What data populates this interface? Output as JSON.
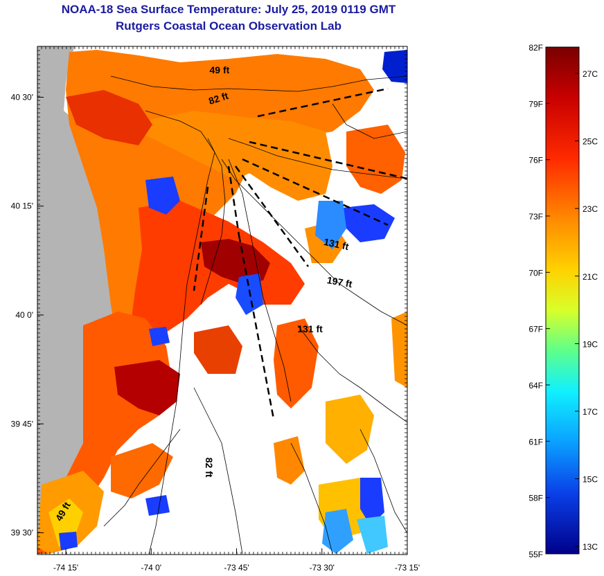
{
  "title": "NOAA-18 Sea Surface Temperature:  July 25, 2019 0119 GMT",
  "subtitle": "Rutgers Coastal Ocean Observation Lab",
  "map": {
    "lon_range": [
      -74.3333,
      -73.25
    ],
    "lat_range": [
      39.45,
      40.6167
    ],
    "x_ticks": [
      {
        "lon": -74.25,
        "label": "-74 15'"
      },
      {
        "lon": -74.0,
        "label": "-74 0'"
      },
      {
        "lon": -73.75,
        "label": "-73 45'"
      },
      {
        "lon": -73.5,
        "label": "-73 30'"
      },
      {
        "lon": -73.25,
        "label": "-73 15'"
      }
    ],
    "y_ticks": [
      {
        "lat": 40.5,
        "label": "40 30'"
      },
      {
        "lat": 40.25,
        "label": "40 15'"
      },
      {
        "lat": 40.0,
        "label": "40 0'"
      },
      {
        "lat": 39.75,
        "label": "39 45'"
      },
      {
        "lat": 39.5,
        "label": "39 30'"
      }
    ],
    "depth_labels": [
      {
        "text": "49 ft",
        "lon": -73.8,
        "lat": 40.555,
        "rotate": 0
      },
      {
        "text": "82 ft",
        "lon": -73.8,
        "lat": 40.49,
        "rotate": -18
      },
      {
        "text": "131 ft",
        "lon": -73.46,
        "lat": 40.155,
        "rotate": 12
      },
      {
        "text": "197 ft",
        "lon": -73.45,
        "lat": 40.068,
        "rotate": 10
      },
      {
        "text": "131 ft",
        "lon": -73.535,
        "lat": 39.96,
        "rotate": 0
      },
      {
        "text": "82 ft",
        "lon": -73.84,
        "lat": 39.65,
        "rotate": 90
      },
      {
        "text": "49 ft",
        "lon": -74.25,
        "lat": 39.545,
        "rotate": -60
      }
    ],
    "colors": {
      "land": "#b4b4b4",
      "ocean_nodata": "#ffffff",
      "contour": "#000000"
    }
  },
  "colorbar": {
    "f_labels": [
      "82F",
      "79F",
      "76F",
      "73F",
      "70F",
      "67F",
      "64F",
      "61F",
      "58F",
      "55F"
    ],
    "c_labels": [
      "27C",
      "25C",
      "23C",
      "21C",
      "19C",
      "17C",
      "15C",
      "13C"
    ],
    "f_min": 55,
    "f_max": 82,
    "c_values": [
      27,
      25,
      23,
      21,
      19,
      17,
      15,
      13
    ]
  }
}
